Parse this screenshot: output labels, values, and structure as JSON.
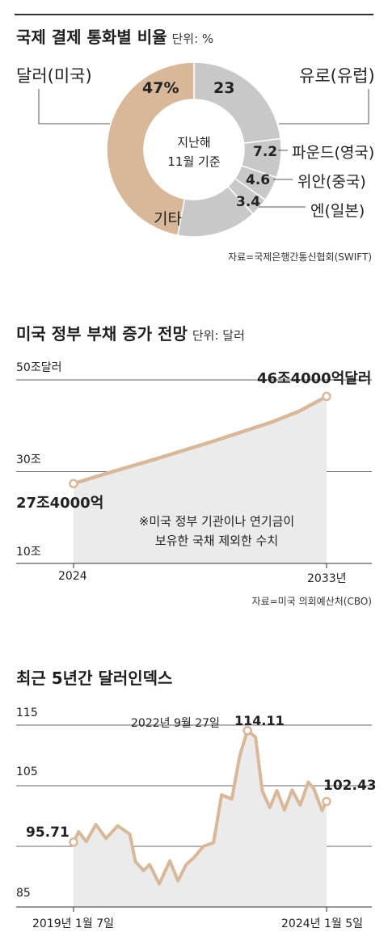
{
  "colors": {
    "accent": "#d8b898",
    "gray": "#c8c8c8",
    "area": "#ebebeb",
    "text": "#222222",
    "line": "#555555"
  },
  "panel1": {
    "title": "국제 결제 통화별 비율",
    "unit": "단위: %",
    "center_text": [
      "지난해",
      "11월 기준"
    ],
    "source": "자료=국제은행간통신협회(SWIFT)",
    "callouts": {
      "usd": "달러(미국)",
      "eur": "유로(유럽)",
      "gbp": "파운드(영국)",
      "cny": "위안(중국)",
      "jpy": "엔(일본)",
      "other": "기타"
    },
    "value_labels": {
      "usd": "47%",
      "eur": "23",
      "gbp": "7.2",
      "cny": "4.6",
      "jpy": "3.4"
    }
  },
  "panel2": {
    "title": "미국 정부 부채 증가 전망",
    "unit": "단위: 달러",
    "note": [
      "※미국 정부 기관이나 연기금이",
      "보유한 국채 제외한 수치"
    ],
    "source": "자료=미국 의회예산처(CBO)",
    "start_label": "27조4000억",
    "end_label": "46조4000억달러",
    "y_ticks": [
      "50조달러",
      "30조",
      "10조"
    ],
    "x_ticks": [
      "2024",
      "2033년"
    ]
  },
  "panel3": {
    "title": "최근 5년간 달러인덱스",
    "peak_label_date": "2022년 9월 27일",
    "peak_label_value": "114.11",
    "start_value_label": "95.71",
    "end_value_label": "102.43",
    "y_ticks": [
      "115",
      "105",
      "85"
    ],
    "x_ticks": [
      "2019년 1월 7일",
      "2024년 1월 5일"
    ]
  },
  "chart_data": [
    {
      "type": "pie",
      "title": "국제 결제 통화별 비율",
      "unit": "%",
      "categories": [
        "유로(유럽)",
        "파운드(영국)",
        "위안(중국)",
        "엔(일본)",
        "기타",
        "달러(미국)"
      ],
      "values": [
        23,
        7.2,
        4.6,
        3.4,
        14.8,
        47
      ],
      "donut": true
    },
    {
      "type": "area",
      "title": "미국 정부 부채 증가 전망",
      "unit": "달러",
      "x": [
        2024,
        2025,
        2026,
        2027,
        2028,
        2029,
        2030,
        2031,
        2032,
        2033
      ],
      "values": [
        27.4,
        29.3,
        31.1,
        32.9,
        34.8,
        36.7,
        38.7,
        40.7,
        43.1,
        46.4
      ],
      "ylim": [
        10,
        50
      ],
      "grid": true
    },
    {
      "type": "area",
      "title": "최근 5년간 달러인덱스",
      "x": [
        2019.02,
        2019.12,
        2019.27,
        2019.46,
        2019.66,
        2019.89,
        2020.13,
        2020.24,
        2020.4,
        2020.52,
        2020.71,
        2020.92,
        2021.08,
        2021.24,
        2021.39,
        2021.58,
        2021.78,
        2021.94,
        2022.14,
        2022.3,
        2022.45,
        2022.61,
        2022.74,
        2022.89,
        2023.03,
        2023.18,
        2023.33,
        2023.49,
        2023.65,
        2023.76,
        2023.92,
        2024.01
      ],
      "values": [
        95.7,
        97.4,
        95.8,
        98.6,
        96.3,
        98.4,
        97.0,
        92.5,
        91.0,
        92.0,
        88.8,
        92.6,
        89.3,
        92.0,
        93.1,
        95.0,
        95.6,
        103.5,
        102.8,
        110.0,
        114.1,
        113.0,
        104.2,
        101.4,
        104.2,
        101.0,
        104.3,
        101.8,
        105.6,
        104.5,
        100.9,
        102.4
      ],
      "ylim": [
        85,
        115
      ],
      "grid": true
    }
  ]
}
